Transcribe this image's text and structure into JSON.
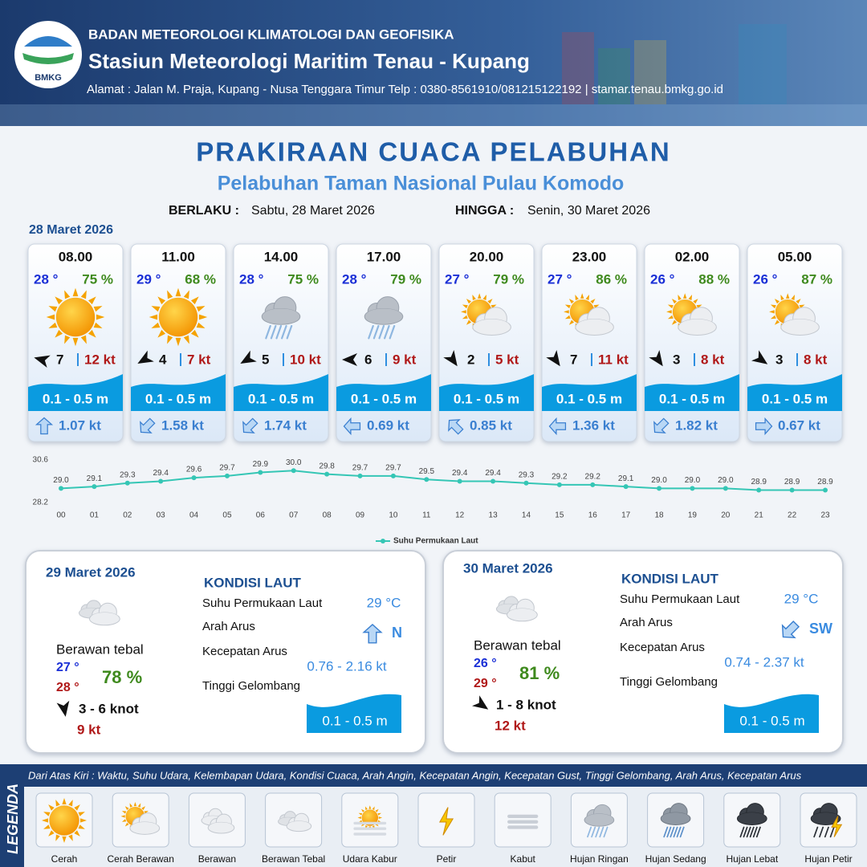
{
  "header": {
    "agency": "BADAN METEOROLOGI KLIMATOLOGI DAN GEOFISIKA",
    "station": "Stasiun Meteorologi Maritim Tenau - Kupang",
    "address": "Alamat : Jalan M. Praja, Kupang - Nusa Tenggara Timur Telp : 0380-8561910/081215122192  | stamar.tenau.bmkg.go.id",
    "logo_text": "BMKG"
  },
  "title": "PRAKIRAAN CUACA PELABUHAN",
  "subtitle": "Pelabuhan Taman Nasional Pulau Komodo",
  "validity": {
    "from_label": "BERLAKU :",
    "from": "Sabtu, 28 Maret 2026",
    "to_label": "HINGGA :",
    "to": "Senin, 30 Maret 2026"
  },
  "day1_date": "28 Maret 2026",
  "forecasts": [
    {
      "time": "08.00",
      "temp": "28 °",
      "humidity": "75 %",
      "wind": "7",
      "gust": "12 kt",
      "wave": "0.1 - 0.5 m",
      "current": "1.07 kt"
    },
    {
      "time": "11.00",
      "temp": "29 °",
      "humidity": "68 %",
      "wind": "4",
      "gust": "7 kt",
      "wave": "0.1 - 0.5 m",
      "current": "1.58 kt"
    },
    {
      "time": "14.00",
      "temp": "28 °",
      "humidity": "75 %",
      "wind": "5",
      "gust": "10 kt",
      "wave": "0.1 - 0.5 m",
      "current": "1.74 kt"
    },
    {
      "time": "17.00",
      "temp": "28 °",
      "humidity": "79 %",
      "wind": "6",
      "gust": "9 kt",
      "wave": "0.1 - 0.5 m",
      "current": "0.69 kt"
    },
    {
      "time": "20.00",
      "temp": "27 °",
      "humidity": "79 %",
      "wind": "2",
      "gust": "5 kt",
      "wave": "0.1 - 0.5 m",
      "current": "0.85 kt"
    },
    {
      "time": "23.00",
      "temp": "27 °",
      "humidity": "86 %",
      "wind": "7",
      "gust": "11 kt",
      "wave": "0.1 - 0.5 m",
      "current": "1.36 kt"
    },
    {
      "time": "02.00",
      "temp": "26 °",
      "humidity": "88 %",
      "wind": "3",
      "gust": "8 kt",
      "wave": "0.1 - 0.5 m",
      "current": "1.82 kt"
    },
    {
      "time": "05.00",
      "temp": "26 °",
      "humidity": "87 %",
      "wind": "3",
      "gust": "8 kt",
      "wave": "0.1 - 0.5 m",
      "current": "0.67 kt"
    }
  ],
  "chart_data": {
    "type": "line",
    "categories": [
      "00",
      "01",
      "02",
      "03",
      "04",
      "05",
      "06",
      "07",
      "08",
      "09",
      "10",
      "11",
      "12",
      "13",
      "14",
      "15",
      "16",
      "17",
      "18",
      "19",
      "20",
      "21",
      "22",
      "23"
    ],
    "series": [
      {
        "name": "Suhu Permukaan Laut",
        "color": "#35c6b5",
        "values": [
          29.0,
          29.1,
          29.3,
          29.4,
          29.6,
          29.7,
          29.9,
          30.0,
          29.8,
          29.7,
          29.7,
          29.5,
          29.4,
          29.4,
          29.3,
          29.2,
          29.2,
          29.1,
          29.0,
          29.0,
          29.0,
          28.9,
          28.9,
          28.9
        ],
        "value_labels": [
          "29.0",
          "29.1",
          "29.3",
          "29.4",
          "29.6",
          "29.7",
          "29.9",
          "30.0",
          "29.8",
          "29.7",
          "29.7",
          "29.5",
          "29.4",
          "29.4",
          "29.3",
          "29.2",
          "29.2",
          "29.1",
          "29.0",
          "29.0",
          "29.0",
          "28.9",
          "28.9",
          "28.9"
        ]
      }
    ],
    "ylim": [
      28.2,
      30.6
    ],
    "yticks": [
      28.2,
      30.6
    ],
    "legend": "bottom"
  },
  "days": [
    {
      "date": "29 Maret 2026",
      "condition": "Berawan tebal",
      "temp_min": "27 °",
      "temp_max": "28 °",
      "humidity": "78 %",
      "wind": "3  - 6 knot",
      "gust": "9 kt",
      "sea_title": "KONDISI LAUT",
      "sst_label": "Suhu Permukaan Laut",
      "sst": "29 °C",
      "dir_label": "Arah Arus",
      "dir": "N",
      "speed_label": "Kecepatan Arus",
      "speed": "0.76 - 2.16 kt",
      "wave_label": "Tinggi Gelombang",
      "wave": "0.1 - 0.5 m"
    },
    {
      "date": "30 Maret 2026",
      "condition": "Berawan tebal",
      "temp_min": "26 °",
      "temp_max": "29 °",
      "humidity": "81 %",
      "wind": "1  - 8 knot",
      "gust": "12 kt",
      "sea_title": "KONDISI LAUT",
      "sst_label": "Suhu Permukaan Laut",
      "sst": "29 °C",
      "dir_label": "Arah Arus",
      "dir": "SW",
      "speed_label": "Kecepatan Arus",
      "speed": "0.74 - 2.37 kt",
      "wave_label": "Tinggi Gelombang",
      "wave": "0.1 - 0.5 m"
    }
  ],
  "legend": {
    "title": "LEGENDA",
    "description": "Dari Atas Kiri : Waktu, Suhu Udara, Kelembapan Udara, Kondisi Cuaca, Arah Angin, Kecepatan Angin, Kecepatan Gust, Tinggi Gelombang, Arah Arus, Kecepatan Arus",
    "items": [
      "Cerah",
      "Cerah Berawan",
      "Berawan",
      "Berawan Tebal",
      "Udara Kabur",
      "Petir",
      "Kabut",
      "Hujan Ringan",
      "Hujan Sedang",
      "Hujan Lebat",
      "Hujan Petir"
    ]
  }
}
